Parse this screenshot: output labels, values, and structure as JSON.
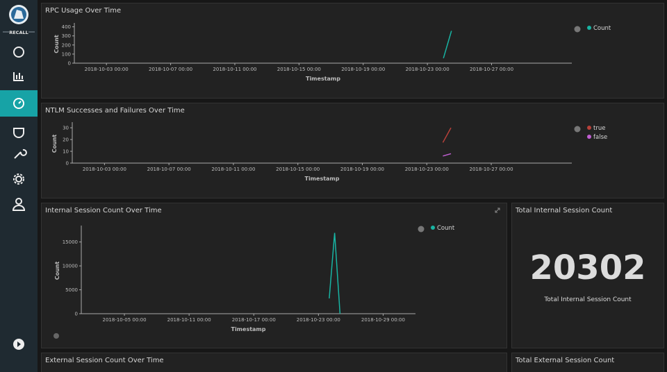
{
  "sidebar": {
    "brand": "RECALL"
  },
  "chart_data": [
    {
      "type": "line",
      "title": "RPC Usage Over Time",
      "x_label": "Timestamp",
      "y_label": "Count",
      "x": [
        "2018-10-24 00:00",
        "2018-10-24 12:00"
      ],
      "series": [
        {
          "name": "Count",
          "color": "#18b4a3",
          "values": [
            55,
            355
          ]
        }
      ],
      "xlim": [
        "2018-10-01 00:00",
        "2018-11-01 00:00"
      ],
      "xticks": [
        "2018-10-03 00:00",
        "2018-10-07 00:00",
        "2018-10-11 00:00",
        "2018-10-15 00:00",
        "2018-10-19 00:00",
        "2018-10-23 00:00",
        "2018-10-27 00:00"
      ],
      "ylim": [
        0,
        420
      ],
      "yticks": [
        0,
        100,
        200,
        300,
        400
      ],
      "legend": "right"
    },
    {
      "type": "line",
      "title": "NTLM Successes and Failures Over Time",
      "x_label": "Timestamp",
      "y_label": "Count",
      "x": [
        "2018-10-24 00:00",
        "2018-10-24 12:00"
      ],
      "series": [
        {
          "name": "true",
          "color": "#b8413a",
          "values": [
            17.5,
            30
          ]
        },
        {
          "name": "false",
          "color": "#c15fd3",
          "values": [
            6,
            8
          ]
        }
      ],
      "xlim": [
        "2018-10-01 00:00",
        "2018-11-01 00:00"
      ],
      "xticks": [
        "2018-10-03 00:00",
        "2018-10-07 00:00",
        "2018-10-11 00:00",
        "2018-10-15 00:00",
        "2018-10-19 00:00",
        "2018-10-23 00:00",
        "2018-10-27 00:00"
      ],
      "ylim": [
        0,
        33
      ],
      "yticks": [
        0,
        10,
        20,
        30
      ],
      "legend": "right"
    },
    {
      "type": "line",
      "title": "Internal Session Count Over Time",
      "x_label": "Timestamp",
      "y_label": "Count",
      "x": [
        "2018-10-24 00:00",
        "2018-10-24 12:00",
        "2018-10-25 00:00"
      ],
      "series": [
        {
          "name": "Count",
          "color": "#18b4a3",
          "values": [
            3200,
            16900,
            0
          ]
        }
      ],
      "xlim": [
        "2018-10-01 00:00",
        "2018-11-01 00:00"
      ],
      "xticks": [
        "2018-10-05 00:00",
        "2018-10-11 00:00",
        "2018-10-17 00:00",
        "2018-10-23 00:00",
        "2018-10-29 00:00"
      ],
      "ylim": [
        0,
        18000
      ],
      "yticks": [
        0,
        5000,
        10000,
        15000
      ],
      "legend": "right"
    }
  ],
  "metric": {
    "title": "Total Internal Session Count",
    "value": 20302,
    "label": "Total Internal Session Count"
  },
  "lower_panels": {
    "left_title": "External Session Count Over Time",
    "right_title": "Total External Session Count"
  }
}
